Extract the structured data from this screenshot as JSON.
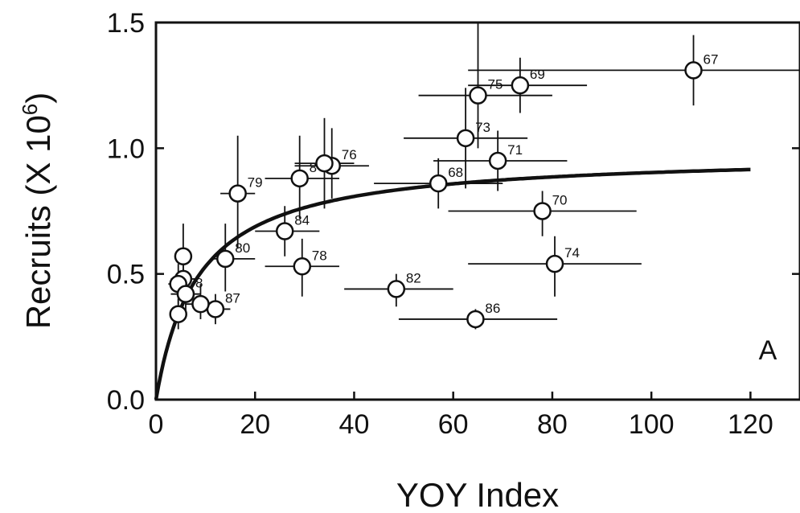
{
  "chart_data": {
    "type": "scatter",
    "title": "",
    "xlabel": "YOY Index",
    "ylabel_main": "Recruits (X 10",
    "ylabel_sup": "6",
    "ylabel_close": ")",
    "panel_label": "A",
    "xlim": [
      0,
      130
    ],
    "ylim": [
      0,
      1.5
    ],
    "x_ticks": [
      0,
      20,
      40,
      60,
      80,
      100,
      120
    ],
    "x_tick_labels": [
      "0",
      "20",
      "40",
      "60",
      "80",
      "100",
      "120"
    ],
    "y_ticks": [
      0,
      0.5,
      1.0,
      1.5
    ],
    "y_tick_labels": [
      "0.0",
      "0.5",
      "1.0",
      "1.5"
    ],
    "grid": false,
    "legend": "none",
    "colors": {
      "ink": "#111111",
      "marker_fill": "#ffffff",
      "background": "#ffffff"
    },
    "curve": {
      "form": "a*x/(b+x)",
      "a": 0.98,
      "b": 8.5,
      "x_range": [
        0,
        120
      ]
    },
    "points": [
      {
        "label": "67",
        "x": 108.5,
        "y": 1.31,
        "x_err": [
          63,
          130
        ],
        "y_err": [
          1.17,
          1.45
        ]
      },
      {
        "label": "69",
        "x": 73.5,
        "y": 1.25,
        "x_err": [
          63,
          87
        ],
        "y_err": [
          1.14,
          1.36
        ]
      },
      {
        "label": "75",
        "x": 65,
        "y": 1.21,
        "x_err": [
          53,
          80
        ],
        "y_err": [
          1.0,
          1.5
        ]
      },
      {
        "label": "73",
        "x": 62.5,
        "y": 1.04,
        "x_err": [
          50,
          75
        ],
        "y_err": [
          0.84,
          1.24
        ]
      },
      {
        "label": "71",
        "x": 69,
        "y": 0.95,
        "x_err": [
          56,
          83
        ],
        "y_err": [
          0.83,
          1.07
        ]
      },
      {
        "label": "68",
        "x": 57,
        "y": 0.86,
        "x_err": [
          44,
          70
        ],
        "y_err": [
          0.76,
          0.96
        ]
      },
      {
        "label": "70",
        "x": 78,
        "y": 0.75,
        "x_err": [
          59,
          97
        ],
        "y_err": [
          0.65,
          0.83
        ]
      },
      {
        "label": "74",
        "x": 80.5,
        "y": 0.54,
        "x_err": [
          63,
          98
        ],
        "y_err": [
          0.41,
          0.65
        ]
      },
      {
        "label": "86",
        "x": 64.5,
        "y": 0.32,
        "x_err": [
          49,
          81
        ],
        "y_err": [
          0.28,
          0.36
        ]
      },
      {
        "label": "82",
        "x": 48.5,
        "y": 0.44,
        "x_err": [
          38,
          60
        ],
        "y_err": [
          0.37,
          0.5
        ]
      },
      {
        "label": "76",
        "x": 35.5,
        "y": 0.93,
        "x_err": [
          28,
          43
        ],
        "y_err": [
          0.8,
          1.08
        ]
      },
      {
        "label": "8",
        "x": 29,
        "y": 0.88,
        "x_err": [
          22,
          37
        ],
        "y_err": [
          0.72,
          1.05
        ]
      },
      {
        "label": "",
        "x": 34,
        "y": 0.94,
        "x_err": [
          28,
          40
        ],
        "y_err": [
          0.76,
          1.12
        ]
      },
      {
        "label": "79",
        "x": 16.5,
        "y": 0.82,
        "x_err": [
          13,
          20
        ],
        "y_err": [
          0.6,
          1.05
        ]
      },
      {
        "label": "84",
        "x": 26,
        "y": 0.67,
        "x_err": [
          20,
          33
        ],
        "y_err": [
          0.57,
          0.77
        ]
      },
      {
        "label": "78",
        "x": 29.5,
        "y": 0.53,
        "x_err": [
          22,
          37
        ],
        "y_err": [
          0.41,
          0.64
        ]
      },
      {
        "label": "80",
        "x": 14,
        "y": 0.56,
        "x_err": [
          11,
          20
        ],
        "y_err": [
          0.43,
          0.7
        ]
      },
      {
        "label": "87",
        "x": 12,
        "y": 0.36,
        "x_err": [
          10,
          15
        ],
        "y_err": [
          0.3,
          0.42
        ]
      },
      {
        "label": "",
        "x": 9,
        "y": 0.38,
        "x_err": [
          6,
          12
        ],
        "y_err": [
          0.32,
          0.46
        ]
      },
      {
        "label": "",
        "x": 5.5,
        "y": 0.57,
        "x_err": [
          4,
          7
        ],
        "y_err": [
          0.45,
          0.7
        ]
      },
      {
        "label": "",
        "x": 5.5,
        "y": 0.48,
        "x_err": [
          3,
          8
        ],
        "y_err": [
          0.38,
          0.58
        ]
      },
      {
        "label": "",
        "x": 4.5,
        "y": 0.46,
        "x_err": [
          2.5,
          6.5
        ],
        "y_err": [
          0.38,
          0.54
        ]
      },
      {
        "label": "8",
        "x": 6,
        "y": 0.42,
        "x_err": [
          3,
          9
        ],
        "y_err": [
          0.34,
          0.5
        ]
      },
      {
        "label": "",
        "x": 4.5,
        "y": 0.34,
        "x_err": [
          3,
          6
        ],
        "y_err": [
          0.28,
          0.4
        ]
      }
    ]
  }
}
